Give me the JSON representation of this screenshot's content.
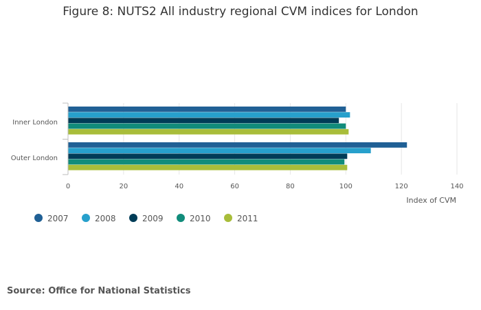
{
  "chart_data": {
    "type": "bar",
    "orientation": "horizontal",
    "title": "Figure 8: NUTS2 All industry regional CVM indices for London",
    "categories": [
      "Inner London",
      "Outer London"
    ],
    "series": [
      {
        "name": "2007",
        "color": "#206095",
        "values": [
          100.0,
          122.0
        ]
      },
      {
        "name": "2008",
        "color": "#27a0cc",
        "values": [
          101.5,
          109.0
        ]
      },
      {
        "name": "2009",
        "color": "#003c57",
        "values": [
          97.5,
          100.5
        ]
      },
      {
        "name": "2010",
        "color": "#118c7b",
        "values": [
          100.0,
          99.5
        ]
      },
      {
        "name": "2011",
        "color": "#a8bd3a",
        "values": [
          101.0,
          100.5
        ]
      }
    ],
    "xlabel": "Index of CVM",
    "ylabel": "",
    "xlim": [
      0,
      140
    ],
    "xticks": [
      0,
      20,
      40,
      60,
      80,
      100,
      120,
      140
    ],
    "grid": true,
    "legend_position": "bottom-left"
  },
  "source": "Source: Office for National Statistics"
}
